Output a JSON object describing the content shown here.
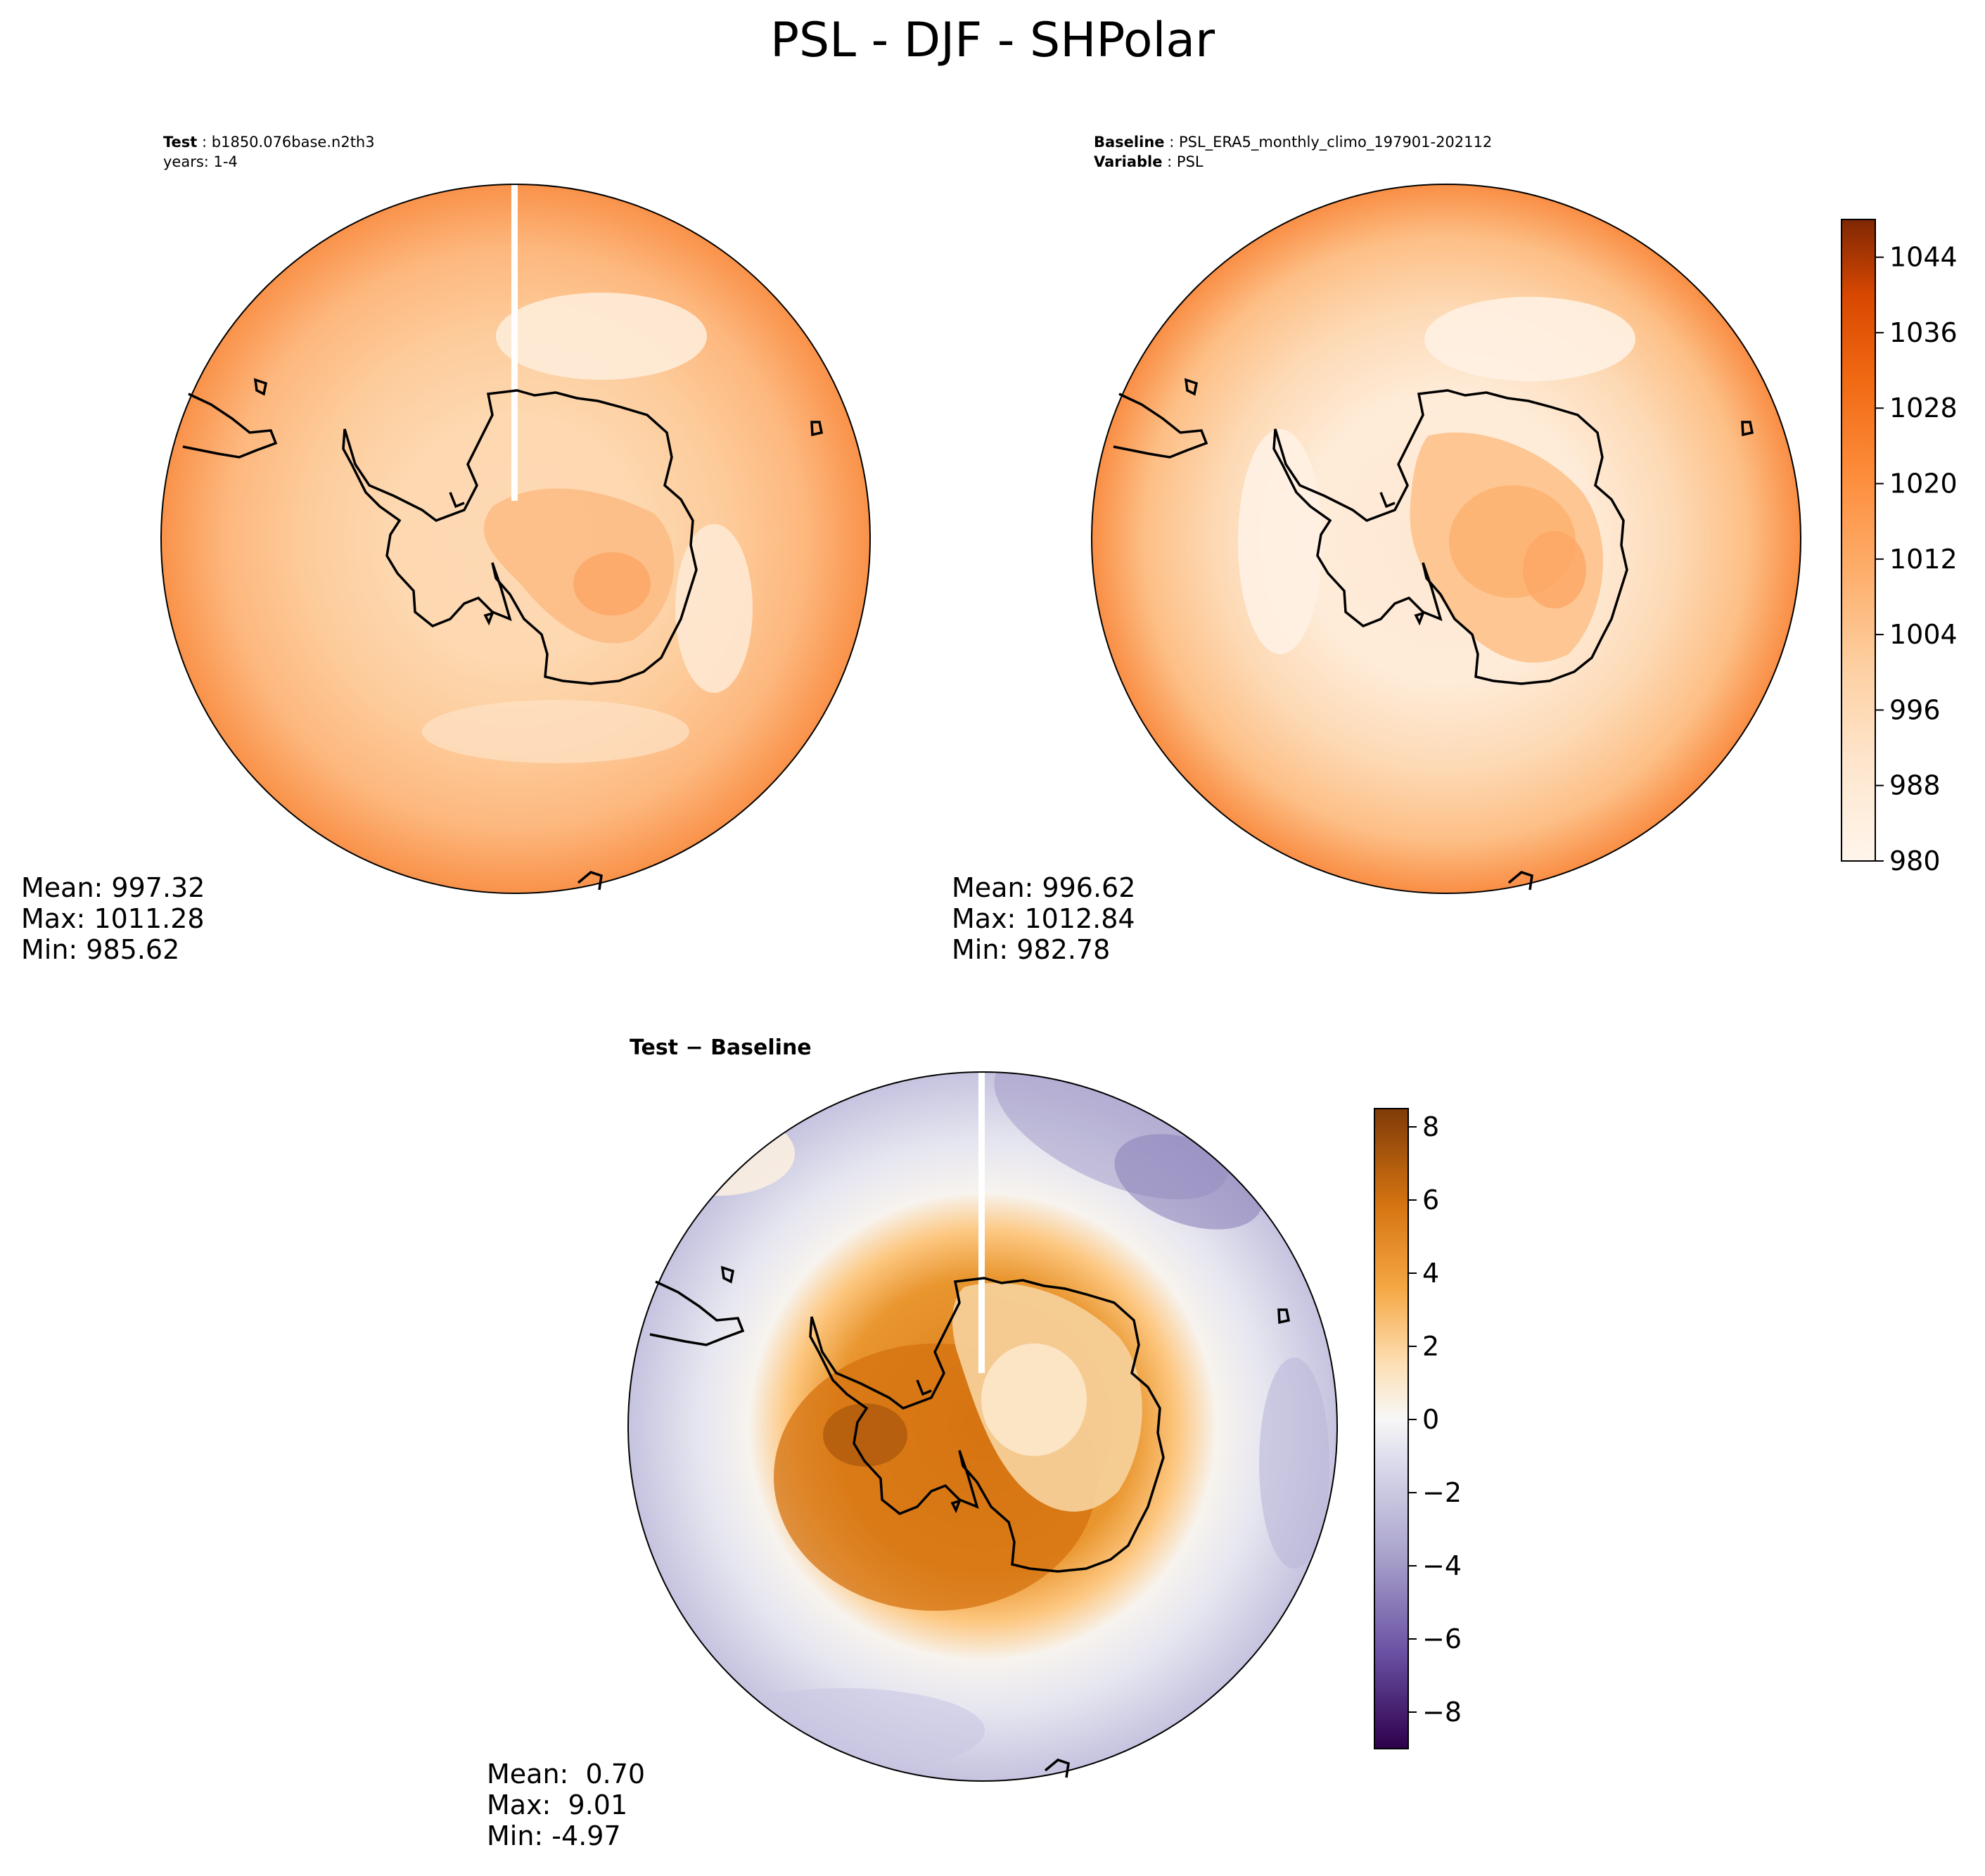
{
  "title": "PSL - DJF - SHPolar",
  "test_panel": {
    "label": "Test",
    "name": "b1850.076base.n2th3",
    "years": "years: 1-4",
    "stats": {
      "mean": "Mean: 997.32",
      "max": "Max: 1011.28",
      "min": "Min: 985.62"
    }
  },
  "baseline_panel": {
    "label": "Baseline",
    "name": "PSL_ERA5_monthly_climo_197901-202112",
    "variable_label": "Variable",
    "variable": "PSL",
    "stats": {
      "mean": "Mean: 996.62",
      "max": "Max: 1012.84",
      "min": "Min: 982.78"
    }
  },
  "diff_panel": {
    "title_a": "Test",
    "title_op": " − ",
    "title_b": "Baseline",
    "stats": {
      "mean": "Mean:  0.70",
      "max": "Max:  9.01",
      "min": "Min: -4.97"
    }
  },
  "colors": {
    "abs_low": "#fff5eb",
    "abs_high": "#7f2704",
    "diff_low": "#2d004b",
    "diff_mid": "#f7f7f7",
    "diff_high": "#7f3b08",
    "coast": "#000000"
  },
  "chart_data": [
    {
      "type": "heatmap",
      "panel": "test",
      "variable": "PSL",
      "projection": "south-polar-stereographic",
      "stats": {
        "mean": 997.32,
        "max": 1011.28,
        "min": 985.62
      },
      "colorbar": {
        "range": [
          980,
          1048
        ],
        "ticks": [
          980,
          988,
          996,
          1004,
          1012,
          1020,
          1028,
          1036,
          1044
        ]
      }
    },
    {
      "type": "heatmap",
      "panel": "baseline",
      "variable": "PSL",
      "projection": "south-polar-stereographic",
      "stats": {
        "mean": 996.62,
        "max": 1012.84,
        "min": 982.78
      },
      "colorbar": {
        "range": [
          980,
          1048
        ],
        "ticks": [
          980,
          988,
          996,
          1004,
          1012,
          1020,
          1028,
          1036,
          1044
        ]
      }
    },
    {
      "type": "heatmap",
      "panel": "test-minus-baseline",
      "variable": "PSL",
      "projection": "south-polar-stereographic",
      "stats": {
        "mean": 0.7,
        "max": 9.01,
        "min": -4.97
      },
      "colorbar": {
        "range": [
          -9,
          8.5
        ],
        "ticks": [
          -8,
          -6,
          -4,
          -2,
          0,
          2,
          4,
          6,
          8
        ],
        "tick_labels": [
          "−8",
          "−6",
          "−4",
          "−2",
          "0",
          "2",
          "4",
          "6",
          "8"
        ]
      }
    }
  ]
}
